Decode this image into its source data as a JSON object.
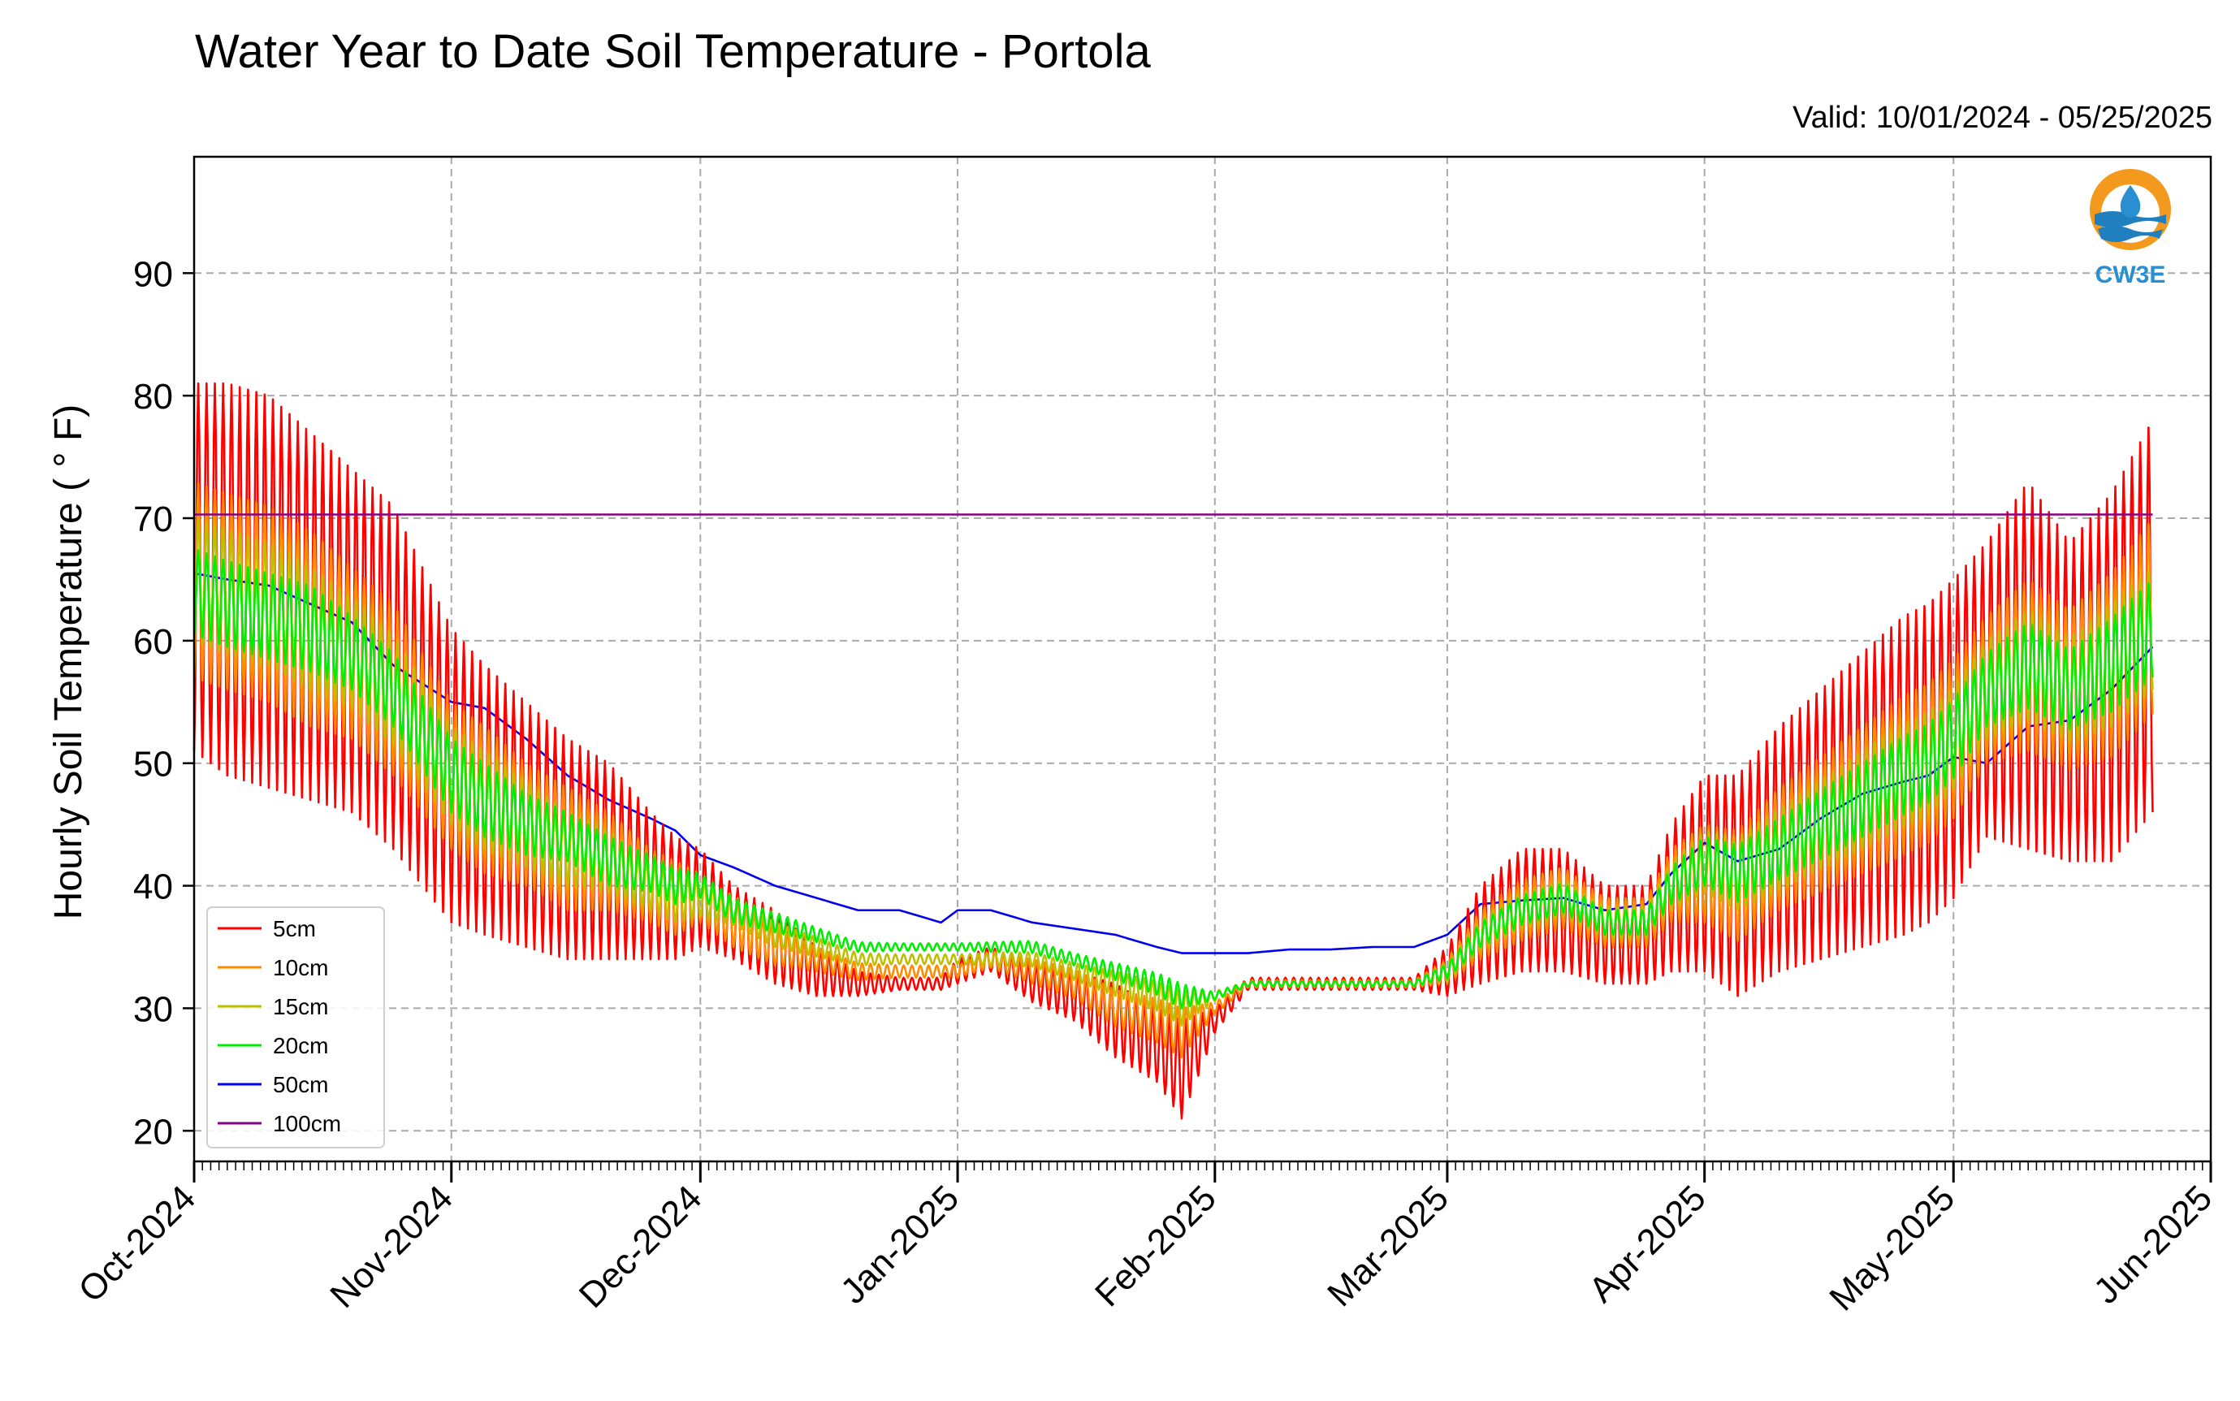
{
  "chart_data": {
    "type": "line",
    "title": "Water Year to Date Soil Temperature - Portola",
    "subtitle": "Valid: 10/01/2024 - 05/25/2025",
    "xlabel": "",
    "ylabel": "Hourly Soil Temperature ( ° F)",
    "xlim": [
      "2024-10-01",
      "2025-06-01"
    ],
    "ylim": [
      17.5,
      99.5
    ],
    "x_ticks": [
      "Oct-2024",
      "Nov-2024",
      "Dec-2024",
      "Jan-2025",
      "Feb-2025",
      "Mar-2025",
      "Apr-2025",
      "May-2025",
      "Jun-2025"
    ],
    "y_ticks": [
      20,
      30,
      40,
      50,
      60,
      70,
      80,
      90
    ],
    "grid": true,
    "legend_position": "lower-left",
    "logo_text": "CW3E",
    "x": [
      "2024-10-01",
      "2024-10-05",
      "2024-10-10",
      "2024-10-15",
      "2024-10-20",
      "2024-10-25",
      "2024-11-01",
      "2024-11-05",
      "2024-11-10",
      "2024-11-15",
      "2024-11-20",
      "2024-11-25",
      "2024-11-28",
      "2024-12-01",
      "2024-12-05",
      "2024-12-10",
      "2024-12-15",
      "2024-12-20",
      "2024-12-25",
      "2024-12-30",
      "2025-01-01",
      "2025-01-05",
      "2025-01-10",
      "2025-01-15",
      "2025-01-20",
      "2025-01-25",
      "2025-01-28",
      "2025-02-01",
      "2025-02-05",
      "2025-02-10",
      "2025-02-15",
      "2025-02-20",
      "2025-02-25",
      "2025-03-01",
      "2025-03-05",
      "2025-03-10",
      "2025-03-15",
      "2025-03-20",
      "2025-03-25",
      "2025-03-28",
      "2025-04-01",
      "2025-04-05",
      "2025-04-10",
      "2025-04-15",
      "2025-04-20",
      "2025-04-25",
      "2025-04-28",
      "2025-05-01",
      "2025-05-05",
      "2025-05-10",
      "2025-05-15",
      "2025-05-20",
      "2025-05-25"
    ],
    "series": [
      {
        "name": "5cm",
        "color": "#ff0000",
        "mean": [
          66,
          65,
          64,
          62,
          60,
          57,
          49,
          47,
          45,
          43,
          42,
          40,
          39,
          39,
          37,
          35,
          33,
          32,
          32,
          32,
          33,
          34,
          32,
          31,
          29,
          27,
          25,
          29,
          32,
          32,
          32,
          32,
          32,
          33,
          36,
          38,
          38,
          36,
          36,
          39,
          41,
          40,
          43,
          45,
          47,
          49,
          50,
          52,
          56,
          58,
          55,
          57,
          62
        ],
        "amplitude": [
          15,
          16,
          16,
          15,
          14,
          14,
          12,
          11,
          10,
          9,
          8,
          6,
          5,
          4,
          3,
          3,
          2,
          1,
          0.5,
          0.5,
          1,
          1,
          1.5,
          2,
          3,
          3,
          4,
          1,
          0.5,
          0.5,
          0.5,
          0.5,
          0.5,
          2,
          4,
          5,
          5,
          4,
          4,
          6,
          8,
          9,
          10,
          11,
          12,
          13,
          13,
          13,
          12,
          15,
          13,
          15,
          16
        ]
      },
      {
        "name": "10cm",
        "color": "#ff8c00",
        "mean": [
          65,
          64,
          63,
          61,
          59,
          56,
          49,
          47,
          45,
          43,
          42,
          40,
          39,
          39,
          37,
          35,
          34,
          33,
          33,
          33,
          33,
          34,
          33,
          32,
          30,
          29,
          28,
          30,
          32,
          32,
          32,
          32,
          32,
          33,
          36,
          38,
          39,
          37,
          37,
          40,
          41,
          40,
          43,
          45,
          47,
          49,
          50,
          52,
          56,
          58,
          56,
          58,
          62
        ],
        "amplitude": [
          8,
          8,
          8,
          8,
          7,
          7,
          6,
          6,
          5,
          5,
          4,
          3,
          3,
          2,
          2,
          1.5,
          1,
          0.7,
          0.5,
          0.5,
          0.5,
          0.7,
          1,
          1.2,
          1.5,
          1.8,
          2,
          0.5,
          0.3,
          0.3,
          0.3,
          0.3,
          0.3,
          1,
          2,
          2.5,
          2.5,
          2,
          2,
          3,
          4,
          4.5,
          5,
          5.5,
          6,
          6.5,
          6.5,
          6.5,
          6,
          7,
          6.5,
          7.5,
          8
        ]
      },
      {
        "name": "15cm",
        "color": "#bfbf00",
        "mean": [
          65,
          64,
          63,
          61,
          59,
          56,
          49,
          47,
          45,
          43,
          42,
          40,
          39,
          39,
          38,
          36,
          35,
          34,
          34,
          34,
          34,
          34,
          34,
          33,
          32,
          31,
          30,
          31,
          32,
          32,
          32,
          32,
          32,
          33,
          36,
          38,
          39,
          37,
          37,
          40,
          42,
          41,
          43,
          45,
          47,
          49,
          50,
          52,
          56,
          58,
          56,
          58,
          61
        ],
        "amplitude": [
          5,
          5,
          5,
          5,
          4.5,
          4.5,
          4,
          4,
          3.5,
          3,
          2.5,
          2,
          2,
          1.5,
          1.2,
          1,
          0.8,
          0.5,
          0.4,
          0.4,
          0.4,
          0.5,
          0.6,
          0.7,
          1,
          1.2,
          1.4,
          0.4,
          0.2,
          0.2,
          0.2,
          0.2,
          0.2,
          0.8,
          1.3,
          1.5,
          1.5,
          1.3,
          1.3,
          2,
          2.5,
          3,
          3.3,
          3.6,
          4,
          4.2,
          4.2,
          4.2,
          4,
          4.5,
          4.2,
          5,
          5
        ]
      },
      {
        "name": "20cm",
        "color": "#00ee00",
        "mean": [
          64,
          63,
          62,
          61,
          59,
          56,
          49,
          47,
          45,
          44,
          42,
          41,
          40,
          40,
          38,
          37,
          36,
          35,
          35,
          35,
          35,
          35,
          35,
          34,
          33,
          32,
          31,
          31,
          32,
          32,
          32,
          32,
          32,
          33,
          36,
          38,
          39,
          37,
          37,
          40,
          42,
          41,
          43,
          45,
          47,
          49,
          50,
          52,
          56,
          58,
          56,
          58,
          61
        ],
        "amplitude": [
          3.5,
          3.5,
          3.5,
          3.5,
          3,
          3,
          3,
          3,
          2.5,
          2,
          2,
          1.5,
          1.5,
          1,
          1,
          0.8,
          0.6,
          0.4,
          0.3,
          0.3,
          0.3,
          0.4,
          0.5,
          0.5,
          0.7,
          0.9,
          1,
          0.3,
          0.2,
          0.2,
          0.2,
          0.2,
          0.2,
          0.6,
          1,
          1.2,
          1.2,
          1,
          1,
          1.5,
          2,
          2.3,
          2.5,
          2.8,
          3,
          3.2,
          3.2,
          3.2,
          3,
          3.5,
          3.2,
          3.8,
          4
        ]
      },
      {
        "name": "50cm",
        "color": "#0000ee",
        "mean": [
          65.5,
          65,
          64.5,
          63,
          61.5,
          58,
          55,
          54.5,
          52,
          49,
          47,
          45.5,
          44.5,
          42.5,
          41.5,
          40,
          39,
          38,
          38,
          37,
          38,
          38,
          37,
          36.5,
          36,
          35,
          34.5,
          34.5,
          34.5,
          34.8,
          34.8,
          35,
          35,
          36,
          38.5,
          38.8,
          39,
          38,
          38.5,
          41,
          43.5,
          42,
          43,
          45.5,
          47.5,
          48.5,
          49,
          50.5,
          50,
          53,
          53.5,
          56,
          59.5
        ],
        "amplitude": [
          0,
          0,
          0,
          0,
          0,
          0,
          0,
          0,
          0,
          0,
          0,
          0,
          0,
          0,
          0,
          0,
          0,
          0,
          0,
          0,
          0,
          0,
          0,
          0,
          0,
          0,
          0,
          0,
          0,
          0,
          0,
          0,
          0,
          0,
          0,
          0,
          0,
          0,
          0,
          0,
          0,
          0,
          0,
          0,
          0,
          0,
          0,
          0,
          0,
          0,
          0,
          0,
          0
        ]
      },
      {
        "name": "100cm",
        "color": "#880088",
        "mean": [
          70.3,
          70.3,
          70.3,
          70.3,
          70.3,
          70.3,
          70.3,
          70.3,
          70.3,
          70.3,
          70.3,
          70.3,
          70.3,
          70.3,
          70.3,
          70.3,
          70.3,
          70.3,
          70.3,
          70.3,
          70.3,
          70.3,
          70.3,
          70.3,
          70.3,
          70.3,
          70.3,
          70.3,
          70.3,
          70.3,
          70.3,
          70.3,
          70.3,
          70.3,
          70.3,
          70.3,
          70.3,
          70.3,
          70.3,
          70.3,
          70.3,
          70.3,
          70.3,
          70.3,
          70.3,
          70.3,
          70.3,
          70.3,
          70.3,
          70.3,
          70.3,
          70.3,
          70.3
        ],
        "amplitude": [
          0,
          0,
          0,
          0,
          0,
          0,
          0,
          0,
          0,
          0,
          0,
          0,
          0,
          0,
          0,
          0,
          0,
          0,
          0,
          0,
          0,
          0,
          0,
          0,
          0,
          0,
          0,
          0,
          0,
          0,
          0,
          0,
          0,
          0,
          0,
          0,
          0,
          0,
          0,
          0,
          0,
          0,
          0,
          0,
          0,
          0,
          0,
          0,
          0,
          0,
          0,
          0,
          0
        ]
      }
    ]
  }
}
